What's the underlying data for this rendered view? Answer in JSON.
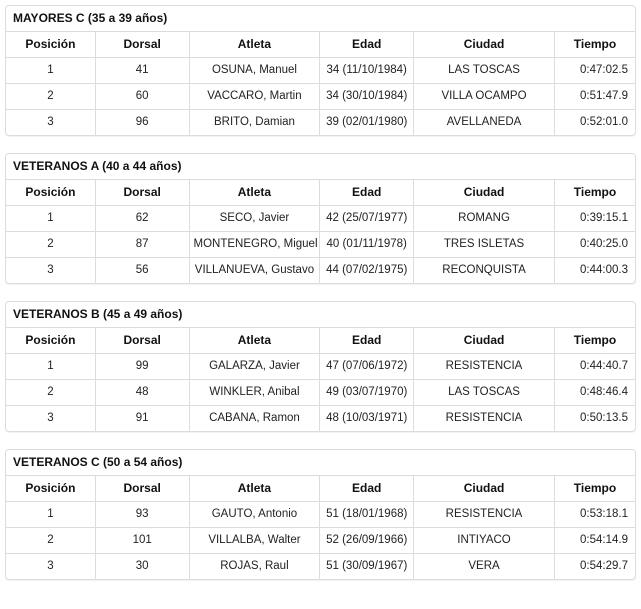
{
  "columns": [
    "Posición",
    "Dorsal",
    "Atleta",
    "Edad",
    "Ciudad",
    "Tiempo"
  ],
  "colors": {
    "border": "#dcdcdc",
    "text": "#222222",
    "heading_text": "#111111",
    "background": "#ffffff"
  },
  "tables": [
    {
      "title": "MAYORES C (35 a 39 años)",
      "rows": [
        [
          "1",
          "41",
          "OSUNA, Manuel",
          "34 (11/10/1984)",
          "LAS TOSCAS",
          "0:47:02.5"
        ],
        [
          "2",
          "60",
          "VACCARO, Martin",
          "34 (30/10/1984)",
          "VILLA OCAMPO",
          "0:51:47.9"
        ],
        [
          "3",
          "96",
          "BRITO, Damian",
          "39 (02/01/1980)",
          "AVELLANEDA",
          "0:52:01.0"
        ]
      ]
    },
    {
      "title": "VETERANOS A (40 a 44 años)",
      "rows": [
        [
          "1",
          "62",
          "SECO, Javier",
          "42 (25/07/1977)",
          "ROMANG",
          "0:39:15.1"
        ],
        [
          "2",
          "87",
          "MONTENEGRO, Miguel",
          "40 (01/11/1978)",
          "TRES ISLETAS",
          "0:40:25.0"
        ],
        [
          "3",
          "56",
          "VILLANUEVA, Gustavo",
          "44 (07/02/1975)",
          "RECONQUISTA",
          "0:44:00.3"
        ]
      ]
    },
    {
      "title": "VETERANOS B (45 a 49 años)",
      "rows": [
        [
          "1",
          "99",
          "GALARZA, Javier",
          "47 (07/06/1972)",
          "RESISTENCIA",
          "0:44:40.7"
        ],
        [
          "2",
          "48",
          "WINKLER, Anibal",
          "49 (03/07/1970)",
          "LAS TOSCAS",
          "0:48:46.4"
        ],
        [
          "3",
          "91",
          "CABANA, Ramon",
          "48 (10/03/1971)",
          "RESISTENCIA",
          "0:50:13.5"
        ]
      ]
    },
    {
      "title": "VETERANOS C (50 a 54 años)",
      "rows": [
        [
          "1",
          "93",
          "GAUTO, Antonio",
          "51 (18/01/1968)",
          "RESISTENCIA",
          "0:53:18.1"
        ],
        [
          "2",
          "101",
          "VILLALBA, Walter",
          "52 (26/09/1966)",
          "INTIYACO",
          "0:54:14.9"
        ],
        [
          "3",
          "30",
          "ROJAS, Raul",
          "51 (30/09/1967)",
          "VERA",
          "0:54:29.7"
        ]
      ]
    }
  ]
}
